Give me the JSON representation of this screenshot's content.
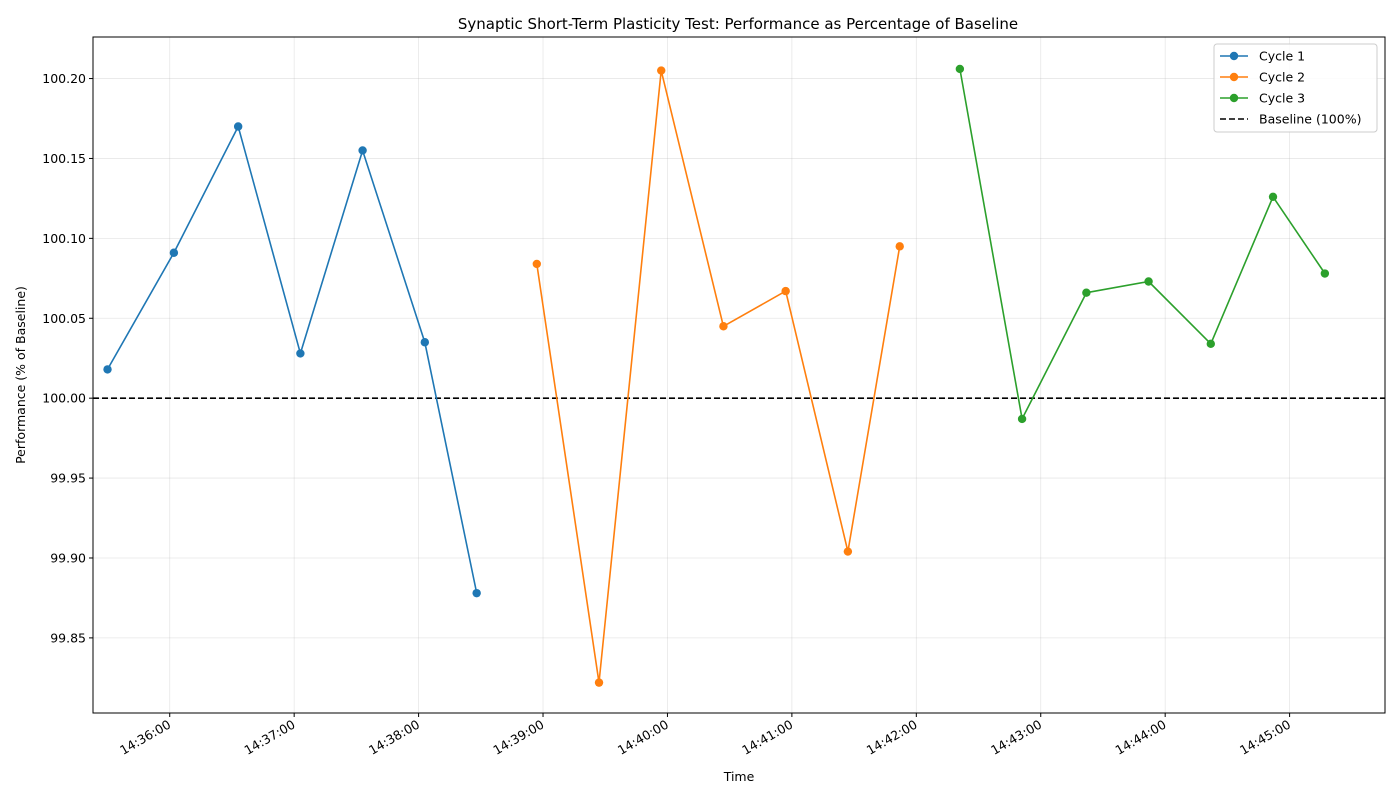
{
  "chart_data": {
    "type": "line",
    "title": "Synaptic Short-Term Plasticity Test: Performance as Percentage of Baseline",
    "xlabel": "Time",
    "ylabel": "Performance (% of Baseline)",
    "xlim": [
      "14:35:23",
      "14:45:46"
    ],
    "ylim": [
      99.803,
      100.226
    ],
    "x_ticks": [
      "14:36:00",
      "14:37:00",
      "14:38:00",
      "14:39:00",
      "14:40:00",
      "14:41:00",
      "14:42:00",
      "14:43:00",
      "14:44:00",
      "14:45:00"
    ],
    "y_ticks": [
      99.85,
      99.9,
      99.95,
      100.0,
      100.05,
      100.1,
      100.15,
      100.2
    ],
    "y_tick_labels": [
      "99.85",
      "99.90",
      "99.95",
      "100.00",
      "100.05",
      "100.10",
      "100.15",
      "100.20"
    ],
    "grid": true,
    "legend_position": "top-right",
    "series": [
      {
        "name": "Cycle 1",
        "color": "#1f77b4",
        "points": [
          {
            "x": "14:35:30",
            "y": 100.018
          },
          {
            "x": "14:36:02",
            "y": 100.091
          },
          {
            "x": "14:36:33",
            "y": 100.17
          },
          {
            "x": "14:37:03",
            "y": 100.028
          },
          {
            "x": "14:37:33",
            "y": 100.155
          },
          {
            "x": "14:38:03",
            "y": 100.035
          },
          {
            "x": "14:38:28",
            "y": 99.878
          }
        ]
      },
      {
        "name": "Cycle 2",
        "color": "#ff7f0e",
        "points": [
          {
            "x": "14:38:57",
            "y": 100.084
          },
          {
            "x": "14:39:27",
            "y": 99.822
          },
          {
            "x": "14:39:57",
            "y": 100.205
          },
          {
            "x": "14:40:27",
            "y": 100.045
          },
          {
            "x": "14:40:57",
            "y": 100.067
          },
          {
            "x": "14:41:27",
            "y": 99.904
          },
          {
            "x": "14:41:52",
            "y": 100.095
          }
        ]
      },
      {
        "name": "Cycle 3",
        "color": "#2ca02c",
        "points": [
          {
            "x": "14:42:21",
            "y": 100.206
          },
          {
            "x": "14:42:51",
            "y": 99.987
          },
          {
            "x": "14:43:22",
            "y": 100.066
          },
          {
            "x": "14:43:52",
            "y": 100.073
          },
          {
            "x": "14:44:22",
            "y": 100.034
          },
          {
            "x": "14:44:52",
            "y": 100.126
          },
          {
            "x": "14:45:17",
            "y": 100.078
          }
        ]
      }
    ],
    "reference_line": {
      "name": "Baseline (100%)",
      "y": 100.0,
      "style": "dashed",
      "color": "#000000"
    }
  }
}
